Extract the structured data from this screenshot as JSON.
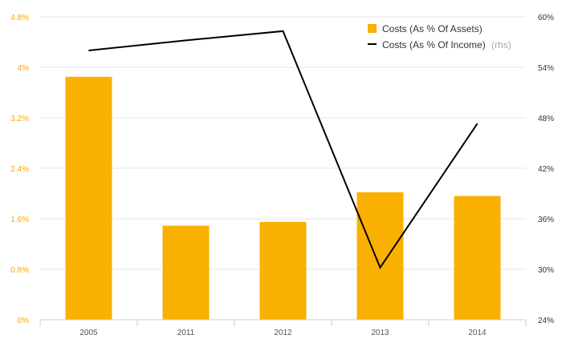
{
  "chart_data": {
    "type": "bar",
    "categories": [
      "2005",
      "2011",
      "2012",
      "2013",
      "2014"
    ],
    "series": [
      {
        "name": "Costs (As % Of Assets)",
        "type": "bar",
        "axis": "left",
        "values": [
          3.85,
          1.49,
          1.55,
          2.02,
          1.96
        ],
        "color": "#f9b000"
      },
      {
        "name": "Costs (As % Of Income)",
        "type": "line",
        "axis": "right",
        "values": [
          56.0,
          57.2,
          58.3,
          30.2,
          47.3
        ],
        "color": "#000000"
      }
    ],
    "legend": {
      "placement": "top-right",
      "rhs_suffix": "(rhs)"
    },
    "left_axis": {
      "ylim": [
        0,
        4.8
      ],
      "ticks": [
        0,
        0.8,
        1.6,
        2.4,
        3.2,
        4.0,
        4.8
      ],
      "tick_labels": [
        "0%",
        "0.8%",
        "1.6%",
        "2.4%",
        "3.2%",
        "4%",
        "4.8%"
      ],
      "color": "#f5a800"
    },
    "right_axis": {
      "ylim": [
        24,
        60
      ],
      "ticks": [
        24,
        30,
        36,
        42,
        48,
        54,
        60
      ],
      "tick_labels": [
        "24%",
        "30%",
        "36%",
        "42%",
        "48%",
        "54%",
        "60%"
      ]
    },
    "grid": true
  }
}
